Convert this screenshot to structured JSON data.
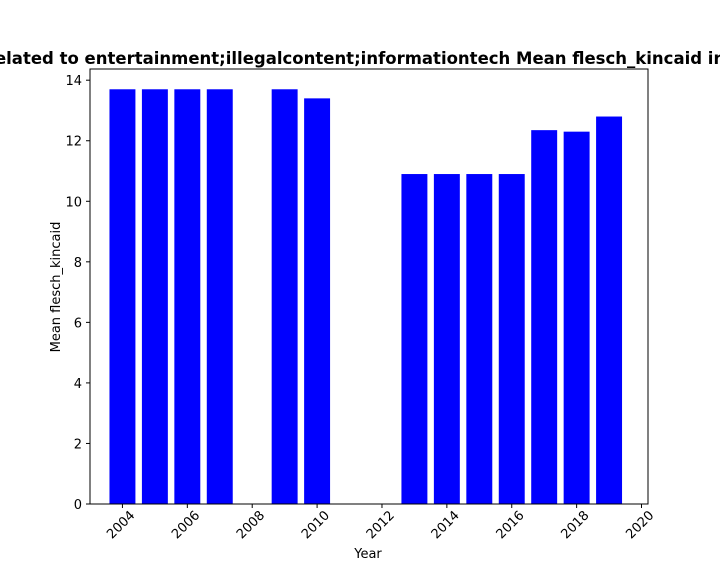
{
  "chart_data": {
    "type": "bar",
    "title": "related to entertainment;illegalcontent;informationtech Mean flesch_kincaid in",
    "xlabel": "Year",
    "ylabel": "Mean flesch_kincaid",
    "x": [
      2004,
      2005,
      2006,
      2007,
      2009,
      2010,
      2013,
      2014,
      2015,
      2016,
      2017,
      2018,
      2019
    ],
    "values": [
      13.7,
      13.7,
      13.7,
      13.7,
      13.7,
      13.4,
      10.9,
      10.9,
      10.9,
      10.9,
      12.35,
      12.3,
      12.8
    ],
    "xlim": [
      2003,
      2020.2
    ],
    "ylim": [
      0,
      14.37
    ],
    "xticks": [
      "2004",
      "2006",
      "2008",
      "2010",
      "2012",
      "2014",
      "2016",
      "2018",
      "2020"
    ],
    "yticks": [
      "0",
      "2",
      "4",
      "6",
      "8",
      "10",
      "12",
      "14"
    ],
    "grid": false,
    "bar_color": "#0000ff"
  }
}
